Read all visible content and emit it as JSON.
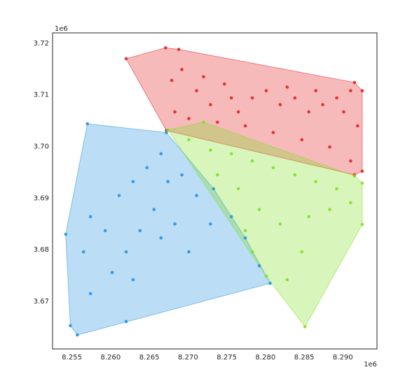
{
  "chart_data": {
    "type": "scatter",
    "x_offset_label": "1e6",
    "y_offset_label": "1e6",
    "xlim": [
      8252500,
      8294400
    ],
    "ylim": [
      3660800,
      3722000
    ],
    "xticks": [
      {
        "value": 8255000,
        "label": "8.255"
      },
      {
        "value": 8260000,
        "label": "8.260"
      },
      {
        "value": 8265000,
        "label": "8.265"
      },
      {
        "value": 8270000,
        "label": "8.270"
      },
      {
        "value": 8275000,
        "label": "8.275"
      },
      {
        "value": 8280000,
        "label": "8.280"
      },
      {
        "value": 8285000,
        "label": "8.285"
      },
      {
        "value": 8290000,
        "label": "8.290"
      }
    ],
    "yticks": [
      {
        "value": 3670000,
        "label": "3.67"
      },
      {
        "value": 3680000,
        "label": "3.68"
      },
      {
        "value": 3690000,
        "label": "3.69"
      },
      {
        "value": 3700000,
        "label": "3.70"
      },
      {
        "value": 3710000,
        "label": "3.71"
      },
      {
        "value": 3720000,
        "label": "3.72"
      }
    ],
    "hull": true,
    "series": [
      {
        "color": "#e31a1c",
        "x": [
          8262000,
          8267100,
          8268800,
          8291500,
          8292500,
          8292500,
          8291500,
          8267200,
          8269200,
          8271100,
          8272900,
          8274700,
          8276500,
          8278300,
          8280100,
          8281900,
          8283800,
          8285600,
          8287400,
          8289200,
          8291000,
          8268300,
          8270100,
          8273800,
          8277400,
          8281000,
          8284700,
          8288300,
          8291000,
          8272000,
          8267900,
          8275600,
          8282800,
          8286500,
          8290100,
          8291900
        ],
        "values": [
          3717000,
          3719100,
          3718800,
          3712400,
          3710800,
          3695200,
          3694500,
          3703100,
          3714900,
          3710800,
          3708100,
          3712100,
          3706700,
          3709400,
          3710800,
          3708100,
          3709400,
          3706700,
          3708100,
          3709400,
          3710800,
          3706700,
          3705400,
          3704700,
          3704000,
          3702700,
          3701300,
          3699900,
          3697200,
          3713500,
          3712800,
          3709400,
          3711500,
          3710800,
          3706700,
          3704000
        ]
      },
      {
        "color": "#1f8fdf",
        "x": [
          8257000,
          8267200,
          8273300,
          8280600,
          8255700,
          8254800,
          8254200,
          8259300,
          8257400,
          8261100,
          8262900,
          8264700,
          8266500,
          8267400,
          8269200,
          8271100,
          8265600,
          8263800,
          8262000,
          8268300,
          8272900,
          8275600,
          8277400,
          8279200,
          8260200,
          8262900,
          8257400,
          8262000,
          8256500,
          8270100,
          8266500
        ],
        "values": [
          3704400,
          3702700,
          3691800,
          3673500,
          3663500,
          3665300,
          3683000,
          3683700,
          3686400,
          3690500,
          3693200,
          3695900,
          3698600,
          3693200,
          3694500,
          3690500,
          3687800,
          3683700,
          3679600,
          3685000,
          3685000,
          3686400,
          3682300,
          3676900,
          3675600,
          3674200,
          3671500,
          3666100,
          3679600,
          3679600,
          3682300
        ]
      },
      {
        "color": "#7ddf1f",
        "x": [
          8267400,
          8272000,
          8291500,
          8292500,
          8292500,
          8285100,
          8280100,
          8277400,
          8270100,
          8272900,
          8275600,
          8278300,
          8281000,
          8283800,
          8286500,
          8289200,
          8291000,
          8276500,
          8279200,
          8281900,
          8285600,
          8288300,
          8282800,
          8278300,
          8284700,
          8273800
        ],
        "values": [
          3703200,
          3704700,
          3694300,
          3692900,
          3684900,
          3665100,
          3674900,
          3683700,
          3701300,
          3699300,
          3698600,
          3697200,
          3695900,
          3694500,
          3693200,
          3691800,
          3689100,
          3691800,
          3687800,
          3685000,
          3686400,
          3687800,
          3674200,
          3679600,
          3679600,
          3694500
        ]
      }
    ]
  }
}
